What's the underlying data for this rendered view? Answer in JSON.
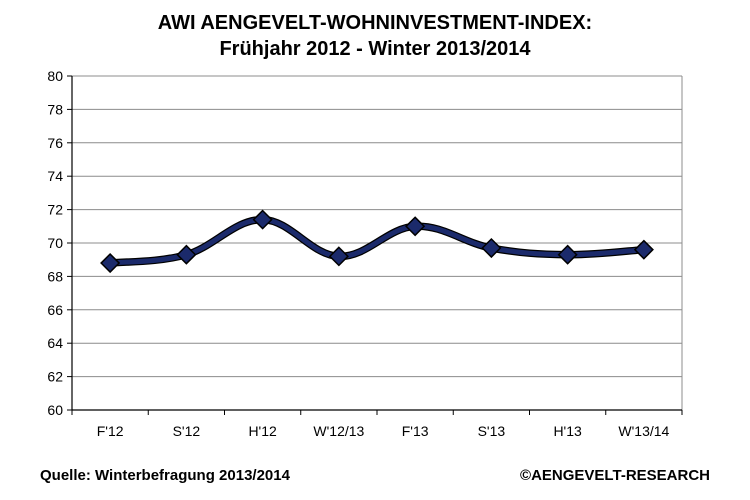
{
  "chart_data": {
    "type": "line",
    "title": "AWI AENGEVELT-WOHNINVESTMENT-INDEX:",
    "subtitle": "Frühjahr 2012 - Winter 2013/2014",
    "categories": [
      "F'12",
      "S'12",
      "H'12",
      "W'12/13",
      "F'13",
      "S'13",
      "H'13",
      "W'13/14"
    ],
    "series": [
      {
        "values": [
          68.8,
          69.3,
          71.4,
          69.2,
          71.0,
          69.7,
          69.3,
          69.6
        ]
      }
    ],
    "xlabel": "",
    "ylabel": "",
    "ylim": [
      60,
      80
    ],
    "yticks": [
      60,
      62,
      64,
      66,
      68,
      70,
      72,
      74,
      76,
      78,
      80
    ],
    "grid": true,
    "legend": "none",
    "line_color": "#1b2a6b",
    "marker": "diamond"
  },
  "footer": {
    "source": "Quelle: Winterbefragung 2013/2014",
    "copyright": "©AENGEVELT-RESEARCH"
  }
}
